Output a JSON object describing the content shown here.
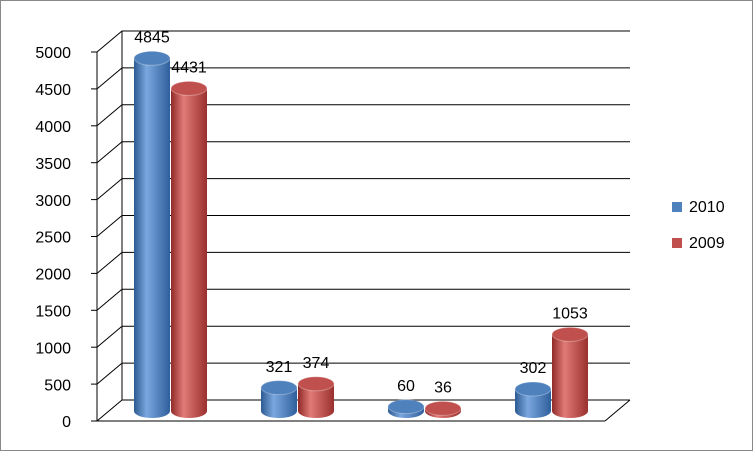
{
  "chart_data": {
    "type": "bar3d",
    "categories": [
      null,
      null,
      null,
      null
    ],
    "series": [
      {
        "name": "2010",
        "color": "#4f81bd",
        "values": [
          4845,
          321,
          60,
          302
        ]
      },
      {
        "name": "2009",
        "color": "#c0504d",
        "values": [
          4431,
          374,
          36,
          1053
        ]
      }
    ],
    "ylim": [
      0,
      5000
    ],
    "yticks": [
      0,
      500,
      1000,
      1500,
      2000,
      2500,
      3000,
      3500,
      4000,
      4500,
      5000
    ],
    "grid": true,
    "legend": "right"
  }
}
